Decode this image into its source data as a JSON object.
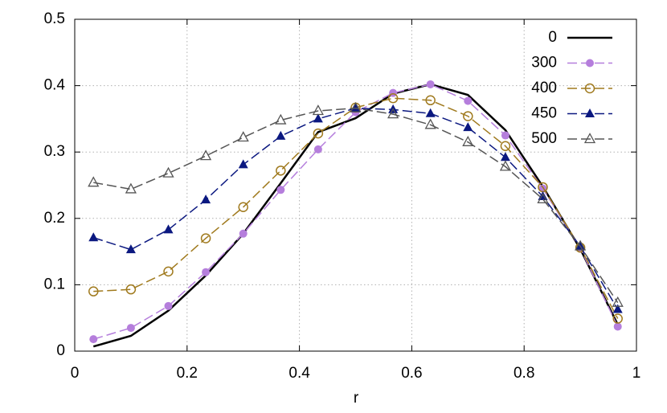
{
  "chart_data": {
    "type": "line",
    "x_label": "r",
    "x": [
      0.0333,
      0.1,
      0.1667,
      0.2333,
      0.3,
      0.3667,
      0.4333,
      0.5,
      0.5667,
      0.6333,
      0.7,
      0.7667,
      0.8333,
      0.9,
      0.9667
    ],
    "series": [
      {
        "name": "0",
        "color": "#000000",
        "marker": "none",
        "dashed": false,
        "values": [
          0.007,
          0.023,
          0.061,
          0.114,
          0.177,
          0.253,
          0.33,
          0.351,
          0.388,
          0.402,
          0.386,
          0.333,
          0.248,
          0.154,
          0.04
        ]
      },
      {
        "name": "300",
        "color": "#b57edc",
        "marker": "filled-circle",
        "dashed": true,
        "values": [
          0.018,
          0.035,
          0.068,
          0.119,
          0.177,
          0.243,
          0.304,
          0.36,
          0.389,
          0.402,
          0.377,
          0.325,
          0.245,
          0.155,
          0.037
        ]
      },
      {
        "name": "400",
        "color": "#a07a1e",
        "marker": "open-circle",
        "dashed": true,
        "values": [
          0.09,
          0.093,
          0.12,
          0.17,
          0.217,
          0.272,
          0.328,
          0.367,
          0.381,
          0.378,
          0.354,
          0.309,
          0.247,
          0.156,
          0.049
        ]
      },
      {
        "name": "450",
        "color": "#0b1880",
        "marker": "filled-triangle",
        "dashed": true,
        "values": [
          0.171,
          0.153,
          0.183,
          0.228,
          0.281,
          0.324,
          0.35,
          0.366,
          0.364,
          0.358,
          0.337,
          0.292,
          0.233,
          0.158,
          0.063
        ]
      },
      {
        "name": "500",
        "color": "#555555",
        "marker": "open-triangle",
        "dashed": true,
        "values": [
          0.254,
          0.244,
          0.268,
          0.294,
          0.322,
          0.348,
          0.362,
          0.366,
          0.357,
          0.341,
          0.315,
          0.278,
          0.229,
          0.158,
          0.073
        ]
      }
    ],
    "xlim": [
      0,
      1
    ],
    "xticks": [
      0,
      0.2,
      0.4,
      0.6,
      0.8,
      1
    ],
    "ylim": [
      0,
      0.5
    ],
    "yticks": [
      0,
      0.1,
      0.2,
      0.3,
      0.4,
      0.5
    ],
    "grid": true,
    "legend": "top-right"
  }
}
